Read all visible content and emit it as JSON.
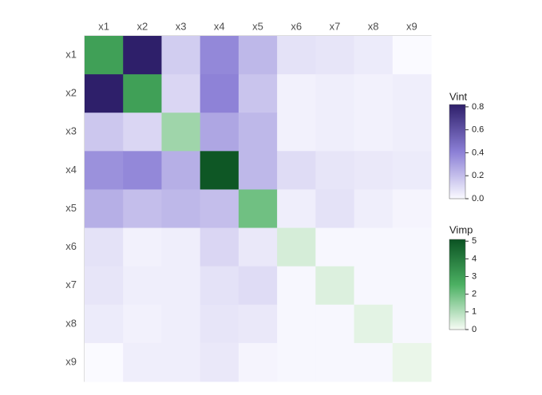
{
  "chart_data": {
    "type": "heatmap",
    "x": [
      "x1",
      "x2",
      "x3",
      "x4",
      "x5",
      "x6",
      "x7",
      "x8",
      "x9"
    ],
    "y": [
      "x1",
      "x2",
      "x3",
      "x4",
      "x5",
      "x6",
      "x7",
      "x8",
      "x9"
    ],
    "vint": {
      "name": "Vint",
      "colors": [
        "#fafaff",
        "#8b7fd6",
        "#2e1f6a"
      ],
      "lim": [
        0,
        0.82
      ],
      "ticks": [
        {
          "value": 0,
          "label": "0.0"
        },
        0.2,
        0.4,
        0.6,
        0.8
      ],
      "values": [
        [
          null,
          0.82,
          0.15,
          0.38,
          0.22,
          0.08,
          0.07,
          0.05,
          0.0
        ],
        [
          0.82,
          null,
          0.12,
          0.4,
          0.18,
          0.03,
          0.04,
          0.03,
          0.04
        ],
        [
          0.17,
          0.12,
          null,
          0.28,
          0.22,
          0.03,
          0.04,
          0.03,
          0.04
        ],
        [
          0.35,
          0.38,
          0.25,
          null,
          0.22,
          0.1,
          0.07,
          0.06,
          0.05
        ],
        [
          0.25,
          0.2,
          0.22,
          0.2,
          null,
          0.04,
          0.08,
          0.04,
          0.02
        ],
        [
          0.08,
          0.03,
          0.04,
          0.12,
          0.06,
          null,
          0.01,
          0.01,
          0.01
        ],
        [
          0.07,
          0.04,
          0.04,
          0.08,
          0.1,
          0.01,
          null,
          0.01,
          0.01
        ],
        [
          0.05,
          0.03,
          0.04,
          0.07,
          0.06,
          0.01,
          0.01,
          null,
          0.01
        ],
        [
          0.0,
          0.04,
          0.04,
          0.06,
          0.02,
          0.01,
          0.01,
          0.01,
          null
        ]
      ]
    },
    "vimp": {
      "name": "Vimp",
      "colors": [
        "#f7fcf5",
        "#4bb062",
        "#0b5323"
      ],
      "lim": [
        0,
        5.1
      ],
      "ticks": [
        0,
        1,
        2,
        3,
        4,
        5
      ],
      "values": [
        3.0,
        3.0,
        1.3,
        5.0,
        2.0,
        0.5,
        0.4,
        0.3,
        0.2
      ]
    }
  }
}
